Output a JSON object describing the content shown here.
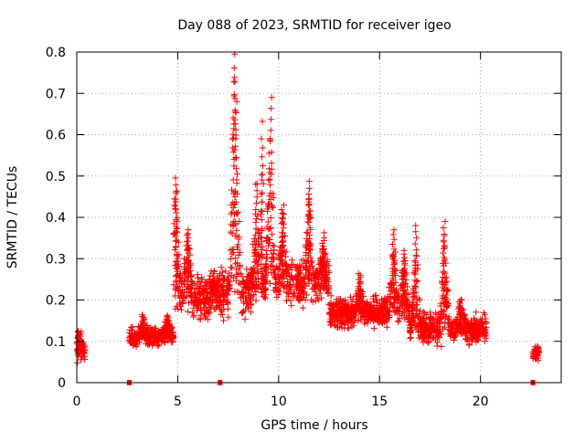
{
  "chart_data": {
    "type": "scatter",
    "title": "Day 088 of 2023, SRMTID for receiver igeo",
    "xlabel": "GPS time / hours",
    "ylabel": "SRMTID / TECUs",
    "xlim": [
      0,
      24
    ],
    "ylim": [
      0,
      0.8
    ],
    "xticks": [
      0,
      5,
      10,
      15,
      20
    ],
    "yticks": [
      0,
      0.1,
      0.2,
      0.3,
      0.4,
      0.5,
      0.6,
      0.7,
      0.8
    ],
    "grid": true,
    "marker": "plus",
    "color": "#ff0000",
    "segments": [
      {
        "start": 0.0,
        "end": 0.4,
        "base": 0.07,
        "spread": 0.035,
        "peaks": [
          [
            0.1,
            0.125
          ]
        ]
      },
      {
        "start": 2.6,
        "end": 4.8,
        "base": 0.11,
        "spread": 0.03,
        "peaks": [
          [
            3.3,
            0.16
          ],
          [
            4.5,
            0.16
          ]
        ]
      },
      {
        "start": 4.8,
        "end": 7.0,
        "base": 0.21,
        "spread": 0.07,
        "peaks": [
          [
            4.9,
            0.495
          ],
          [
            5.5,
            0.37
          ],
          [
            6.8,
            0.25
          ]
        ]
      },
      {
        "start": 7.0,
        "end": 9.2,
        "base": 0.22,
        "spread": 0.08,
        "peaks": [
          [
            7.8,
            0.795
          ],
          [
            7.9,
            0.68
          ],
          [
            8.9,
            0.48
          ],
          [
            9.2,
            0.59
          ]
        ]
      },
      {
        "start": 9.2,
        "end": 12.5,
        "base": 0.24,
        "spread": 0.07,
        "peaks": [
          [
            9.6,
            0.69
          ],
          [
            10.2,
            0.43
          ],
          [
            11.5,
            0.47
          ],
          [
            12.2,
            0.35
          ]
        ]
      },
      {
        "start": 12.5,
        "end": 16.5,
        "base": 0.17,
        "spread": 0.05,
        "peaks": [
          [
            14.0,
            0.26
          ],
          [
            15.7,
            0.37
          ],
          [
            16.2,
            0.32
          ]
        ]
      },
      {
        "start": 16.5,
        "end": 20.3,
        "base": 0.13,
        "spread": 0.05,
        "peaks": [
          [
            16.8,
            0.38
          ],
          [
            18.2,
            0.39
          ],
          [
            19.0,
            0.2
          ]
        ]
      },
      {
        "start": 22.6,
        "end": 22.9,
        "base": 0.065,
        "spread": 0.02,
        "peaks": [
          [
            22.8,
            0.085
          ]
        ]
      }
    ],
    "gap_markers": [
      2.6,
      7.1,
      22.6
    ]
  }
}
